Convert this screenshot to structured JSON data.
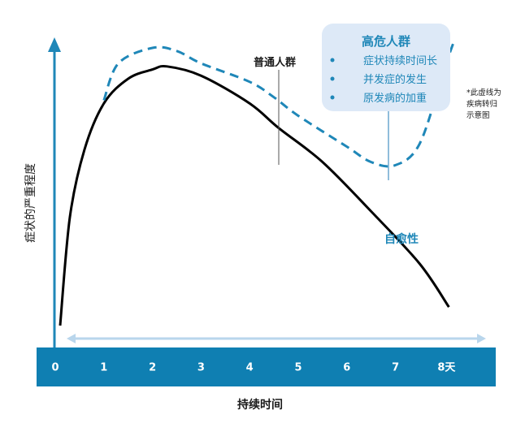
{
  "chart_data": {
    "type": "line",
    "categories": [
      "0",
      "1",
      "2",
      "3",
      "4",
      "5",
      "6",
      "7",
      "8天"
    ],
    "xlabel": "持续时间",
    "ylabel": "症状的严重程度",
    "xlim": [
      0,
      8.2
    ],
    "ylim": [
      0,
      100
    ],
    "grid": false,
    "series": [
      {
        "name": "普通人群",
        "style": "solid",
        "color": "#000000",
        "x": [
          0.1,
          0.3,
          0.6,
          1.0,
          1.5,
          2.0,
          2.3,
          3.0,
          4.0,
          4.6,
          5.5,
          6.5,
          7.5,
          8.1
        ],
        "y": [
          5,
          40,
          62,
          77,
          85,
          88,
          89,
          86,
          77,
          69,
          58,
          42,
          25,
          11
        ]
      },
      {
        "name": "高危人群",
        "style": "dashed",
        "color": "#1f87b8",
        "x": [
          1.0,
          1.3,
          2.0,
          2.5,
          3.0,
          4.0,
          4.5,
          5.0,
          6.0,
          6.5,
          7.0,
          7.5,
          8.0,
          8.2
        ],
        "y": [
          78,
          90,
          95,
          94,
          90,
          84,
          79,
          73,
          63,
          58,
          57,
          64,
          88,
          97
        ]
      }
    ],
    "annotations": {
      "normal_label": "普通人群",
      "self_label": "自愈性",
      "note": [
        "*此虚线为",
        "疾病转归",
        "示意图"
      ]
    },
    "callout": {
      "title": "高危人群",
      "items": [
        "症状持续时间长",
        "并发症的发生",
        "原发病的加重"
      ]
    },
    "colors": {
      "accent": "#1f87b8",
      "axis_band": "#0f7fb2",
      "callout_bg": "#dde9f7",
      "range_arrow": "#b9d6ec"
    }
  }
}
